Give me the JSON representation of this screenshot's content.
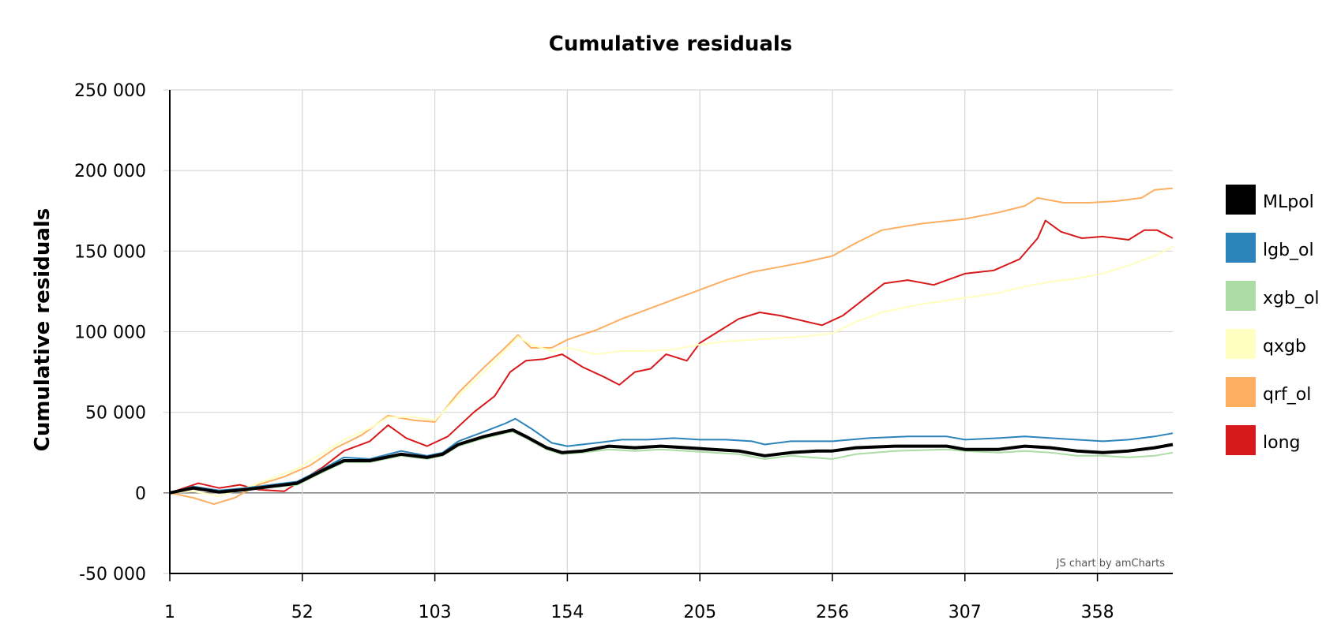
{
  "chart_data": {
    "type": "line",
    "title": "Cumulative residuals",
    "xlabel": "",
    "ylabel": "Cumulative residuals",
    "credit": "JS chart by amCharts",
    "x_range": [
      1,
      387
    ],
    "ylim": [
      -50000,
      250000
    ],
    "x_ticks": [
      "1",
      "52",
      "103",
      "154",
      "205",
      "256",
      "307",
      "358"
    ],
    "y_ticks": [
      "-50 000",
      "0",
      "50 000",
      "100 000",
      "150 000",
      "200 000",
      "250 000"
    ],
    "grid": true,
    "legend_position": "right",
    "series": [
      {
        "name": "MLpol",
        "color": "#000000",
        "points": [
          [
            1,
            0
          ],
          [
            10,
            3000
          ],
          [
            20,
            500
          ],
          [
            30,
            2000
          ],
          [
            40,
            4000
          ],
          [
            50,
            6000
          ],
          [
            60,
            14000
          ],
          [
            68,
            20000
          ],
          [
            78,
            20000
          ],
          [
            90,
            24000
          ],
          [
            100,
            22000
          ],
          [
            106,
            24000
          ],
          [
            112,
            30000
          ],
          [
            122,
            35000
          ],
          [
            130,
            38000
          ],
          [
            133,
            39000
          ],
          [
            138,
            35000
          ],
          [
            146,
            28000
          ],
          [
            152,
            25000
          ],
          [
            160,
            26000
          ],
          [
            170,
            29000
          ],
          [
            180,
            28000
          ],
          [
            190,
            29000
          ],
          [
            200,
            28000
          ],
          [
            210,
            27000
          ],
          [
            220,
            26000
          ],
          [
            230,
            23000
          ],
          [
            240,
            25000
          ],
          [
            250,
            26000
          ],
          [
            256,
            26000
          ],
          [
            265,
            28000
          ],
          [
            280,
            29000
          ],
          [
            300,
            29000
          ],
          [
            307,
            27000
          ],
          [
            320,
            27000
          ],
          [
            330,
            29000
          ],
          [
            340,
            28000
          ],
          [
            350,
            26000
          ],
          [
            360,
            25000
          ],
          [
            370,
            26000
          ],
          [
            380,
            28000
          ],
          [
            387,
            30000
          ]
        ]
      },
      {
        "name": "lgb_ol",
        "color": "#2b83ba",
        "points": [
          [
            1,
            0
          ],
          [
            10,
            4000
          ],
          [
            20,
            1500
          ],
          [
            30,
            3000
          ],
          [
            40,
            5000
          ],
          [
            50,
            7000
          ],
          [
            60,
            15000
          ],
          [
            68,
            22000
          ],
          [
            78,
            21000
          ],
          [
            90,
            26000
          ],
          [
            100,
            23000
          ],
          [
            106,
            25000
          ],
          [
            112,
            32000
          ],
          [
            122,
            38000
          ],
          [
            130,
            43000
          ],
          [
            134,
            46000
          ],
          [
            140,
            40000
          ],
          [
            148,
            31000
          ],
          [
            154,
            29000
          ],
          [
            165,
            31000
          ],
          [
            175,
            33000
          ],
          [
            185,
            33000
          ],
          [
            195,
            34000
          ],
          [
            205,
            33000
          ],
          [
            215,
            33000
          ],
          [
            225,
            32000
          ],
          [
            230,
            30000
          ],
          [
            240,
            32000
          ],
          [
            256,
            32000
          ],
          [
            270,
            34000
          ],
          [
            285,
            35000
          ],
          [
            300,
            35000
          ],
          [
            307,
            33000
          ],
          [
            320,
            34000
          ],
          [
            330,
            35000
          ],
          [
            340,
            34000
          ],
          [
            350,
            33000
          ],
          [
            360,
            32000
          ],
          [
            370,
            33000
          ],
          [
            380,
            35000
          ],
          [
            387,
            37000
          ]
        ]
      },
      {
        "name": "xgb_ol",
        "color": "#abdda4",
        "points": [
          [
            1,
            0
          ],
          [
            10,
            2500
          ],
          [
            20,
            0
          ],
          [
            30,
            1500
          ],
          [
            40,
            3500
          ],
          [
            50,
            5000
          ],
          [
            60,
            13000
          ],
          [
            68,
            19000
          ],
          [
            78,
            19000
          ],
          [
            90,
            23000
          ],
          [
            100,
            21000
          ],
          [
            106,
            23000
          ],
          [
            112,
            29000
          ],
          [
            122,
            34000
          ],
          [
            130,
            37000
          ],
          [
            133,
            38000
          ],
          [
            138,
            34000
          ],
          [
            146,
            27000
          ],
          [
            152,
            24000
          ],
          [
            160,
            25000
          ],
          [
            170,
            27000
          ],
          [
            180,
            26000
          ],
          [
            190,
            27000
          ],
          [
            200,
            26000
          ],
          [
            210,
            25000
          ],
          [
            220,
            24000
          ],
          [
            230,
            21000
          ],
          [
            240,
            23000
          ],
          [
            256,
            21000
          ],
          [
            265,
            24000
          ],
          [
            280,
            26000
          ],
          [
            300,
            27000
          ],
          [
            307,
            26000
          ],
          [
            320,
            25000
          ],
          [
            330,
            26000
          ],
          [
            340,
            25000
          ],
          [
            350,
            23000
          ],
          [
            360,
            23000
          ],
          [
            370,
            22000
          ],
          [
            380,
            23000
          ],
          [
            387,
            25000
          ]
        ]
      },
      {
        "name": "qxgb",
        "color": "#ffffbf",
        "points": [
          [
            1,
            0
          ],
          [
            10,
            1000
          ],
          [
            20,
            -2000
          ],
          [
            30,
            3000
          ],
          [
            40,
            9000
          ],
          [
            50,
            15000
          ],
          [
            60,
            25000
          ],
          [
            68,
            33000
          ],
          [
            78,
            40000
          ],
          [
            85,
            47000
          ],
          [
            95,
            47000
          ],
          [
            103,
            45000
          ],
          [
            112,
            60000
          ],
          [
            122,
            75000
          ],
          [
            130,
            88000
          ],
          [
            135,
            97000
          ],
          [
            140,
            92000
          ],
          [
            148,
            88000
          ],
          [
            154,
            90000
          ],
          [
            165,
            86000
          ],
          [
            175,
            88000
          ],
          [
            185,
            88000
          ],
          [
            195,
            89000
          ],
          [
            205,
            92000
          ],
          [
            215,
            94000
          ],
          [
            225,
            95000
          ],
          [
            235,
            96000
          ],
          [
            245,
            97000
          ],
          [
            256,
            99000
          ],
          [
            265,
            106000
          ],
          [
            275,
            112000
          ],
          [
            290,
            117000
          ],
          [
            307,
            121000
          ],
          [
            320,
            124000
          ],
          [
            330,
            128000
          ],
          [
            340,
            131000
          ],
          [
            350,
            133000
          ],
          [
            360,
            136000
          ],
          [
            370,
            141000
          ],
          [
            380,
            147000
          ],
          [
            387,
            153000
          ]
        ]
      },
      {
        "name": "qrf_ol",
        "color": "#fdae61",
        "points": [
          [
            1,
            0
          ],
          [
            10,
            -3000
          ],
          [
            18,
            -7000
          ],
          [
            26,
            -3000
          ],
          [
            35,
            5000
          ],
          [
            45,
            10000
          ],
          [
            55,
            17000
          ],
          [
            65,
            28000
          ],
          [
            75,
            36000
          ],
          [
            85,
            48000
          ],
          [
            95,
            45000
          ],
          [
            103,
            44000
          ],
          [
            112,
            62000
          ],
          [
            122,
            78000
          ],
          [
            130,
            90000
          ],
          [
            135,
            98000
          ],
          [
            140,
            90000
          ],
          [
            148,
            90000
          ],
          [
            154,
            95000
          ],
          [
            165,
            101000
          ],
          [
            175,
            108000
          ],
          [
            185,
            114000
          ],
          [
            195,
            120000
          ],
          [
            205,
            126000
          ],
          [
            215,
            132000
          ],
          [
            225,
            137000
          ],
          [
            235,
            140000
          ],
          [
            245,
            143000
          ],
          [
            256,
            147000
          ],
          [
            265,
            155000
          ],
          [
            275,
            163000
          ],
          [
            290,
            167000
          ],
          [
            307,
            170000
          ],
          [
            320,
            174000
          ],
          [
            330,
            178000
          ],
          [
            335,
            183000
          ],
          [
            345,
            180000
          ],
          [
            355,
            180000
          ],
          [
            365,
            181000
          ],
          [
            375,
            183000
          ],
          [
            380,
            188000
          ],
          [
            387,
            189000
          ]
        ]
      },
      {
        "name": "long",
        "color": "#d7191c",
        "points": [
          [
            1,
            0
          ],
          [
            12,
            6000
          ],
          [
            20,
            3000
          ],
          [
            28,
            5000
          ],
          [
            35,
            2000
          ],
          [
            45,
            1000
          ],
          [
            52,
            8000
          ],
          [
            60,
            16000
          ],
          [
            68,
            26000
          ],
          [
            78,
            32000
          ],
          [
            85,
            42000
          ],
          [
            92,
            34000
          ],
          [
            100,
            29000
          ],
          [
            108,
            35000
          ],
          [
            118,
            50000
          ],
          [
            126,
            60000
          ],
          [
            132,
            75000
          ],
          [
            138,
            82000
          ],
          [
            145,
            83000
          ],
          [
            152,
            86000
          ],
          [
            160,
            78000
          ],
          [
            168,
            72000
          ],
          [
            174,
            67000
          ],
          [
            180,
            75000
          ],
          [
            186,
            77000
          ],
          [
            192,
            86000
          ],
          [
            200,
            82000
          ],
          [
            205,
            93000
          ],
          [
            212,
            100000
          ],
          [
            220,
            108000
          ],
          [
            228,
            112000
          ],
          [
            236,
            110000
          ],
          [
            244,
            107000
          ],
          [
            252,
            104000
          ],
          [
            260,
            110000
          ],
          [
            268,
            120000
          ],
          [
            276,
            130000
          ],
          [
            285,
            132000
          ],
          [
            295,
            129000
          ],
          [
            307,
            136000
          ],
          [
            318,
            138000
          ],
          [
            328,
            145000
          ],
          [
            335,
            158000
          ],
          [
            338,
            169000
          ],
          [
            344,
            162000
          ],
          [
            352,
            158000
          ],
          [
            360,
            159000
          ],
          [
            370,
            157000
          ],
          [
            376,
            163000
          ],
          [
            381,
            163000
          ],
          [
            387,
            158000
          ]
        ]
      }
    ]
  }
}
